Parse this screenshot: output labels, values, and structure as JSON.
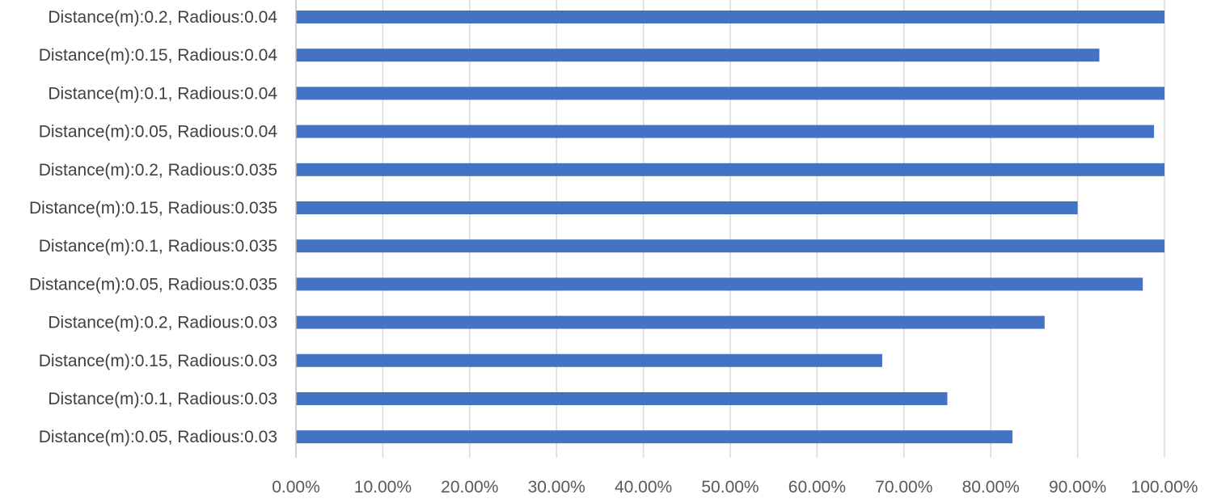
{
  "chart_data": {
    "type": "bar",
    "orientation": "horizontal",
    "categories": [
      "Distance(m):0.2, Radious:0.04",
      "Distance(m):0.15, Radious:0.04",
      "Distance(m):0.1, Radious:0.04",
      "Distance(m):0.05, Radious:0.04",
      "Distance(m):0.2, Radious:0.035",
      "Distance(m):0.15, Radious:0.035",
      "Distance(m):0.1, Radious:0.035",
      "Distance(m):0.05, Radious:0.035",
      "Distance(m):0.2, Radious:0.03",
      "Distance(m):0.15, Radious:0.03",
      "Distance(m):0.1, Radious:0.03",
      "Distance(m):0.05, Radious:0.03"
    ],
    "values": [
      1.0,
      0.925,
      1.0,
      0.988,
      1.0,
      0.9,
      1.0,
      0.975,
      0.862,
      0.675,
      0.75,
      0.825
    ],
    "xlim": [
      0,
      1
    ],
    "xticks": [
      0,
      0.1,
      0.2,
      0.3,
      0.4,
      0.5,
      0.6,
      0.7,
      0.8,
      0.9,
      1.0
    ],
    "xtick_labels": [
      "0.00%",
      "10.00%",
      "20.00%",
      "30.00%",
      "40.00%",
      "50.00%",
      "60.00%",
      "70.00%",
      "80.00%",
      "90.00%",
      "100.00%"
    ],
    "title": "",
    "xlabel": "",
    "ylabel": "",
    "grid": "vertical",
    "legend": "none",
    "bar_color": "#4472c4"
  }
}
